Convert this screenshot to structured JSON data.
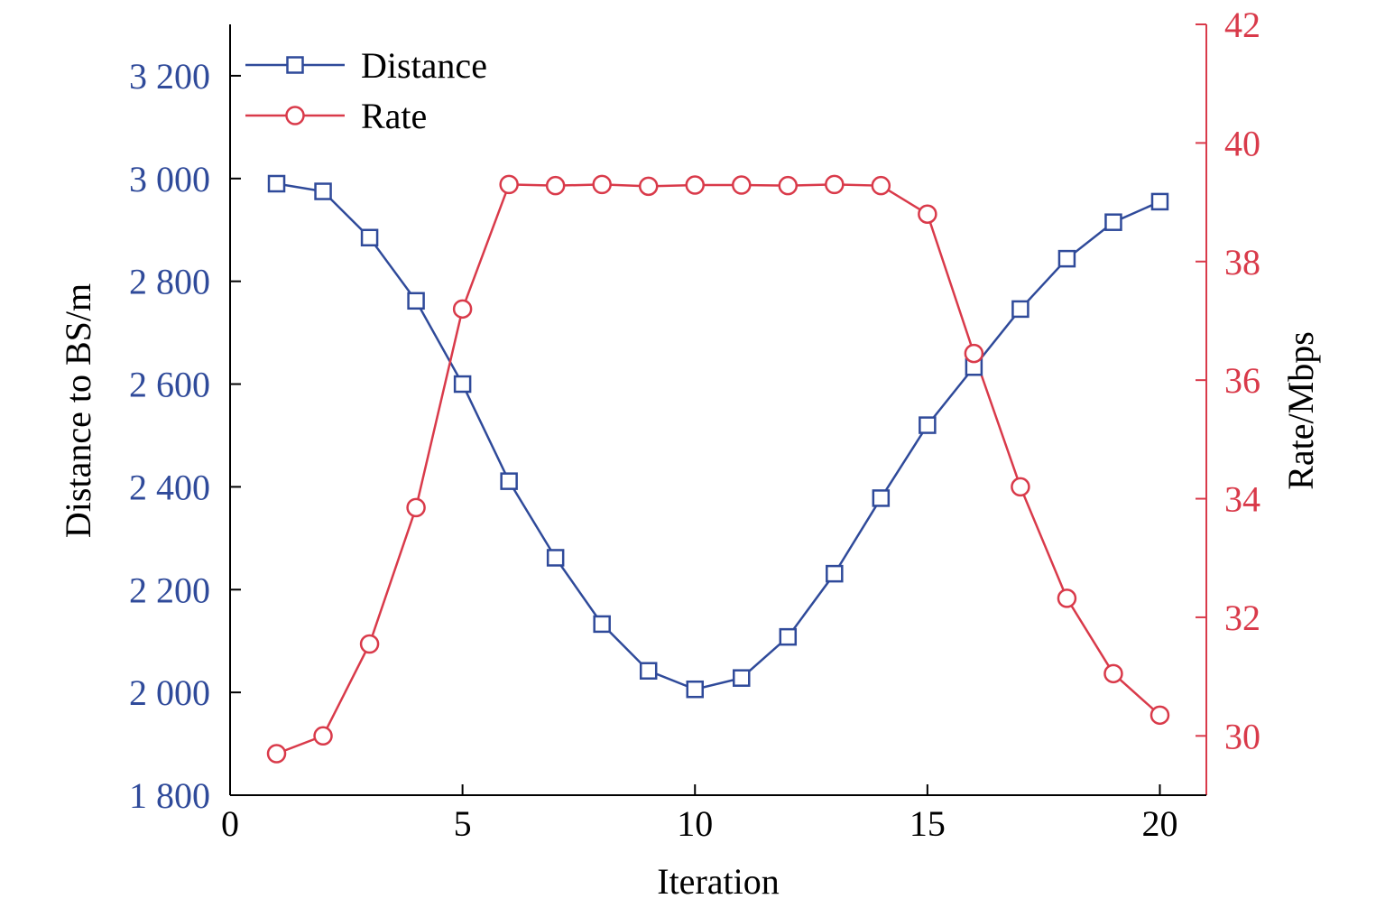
{
  "chart_data": {
    "type": "line",
    "title": "",
    "xlabel": "Iteration",
    "ylabel_left": "Distance to BS/m",
    "ylabel_right": "Rate/Mbps",
    "xlim": [
      0,
      21
    ],
    "ylim_left": [
      1800,
      3300
    ],
    "ylim_right": [
      29,
      42
    ],
    "x_ticks": [
      0,
      5,
      10,
      15,
      20
    ],
    "y_left_ticks": [
      1800,
      2000,
      2200,
      2400,
      2600,
      2800,
      3000,
      3200
    ],
    "y_left_tick_labels": [
      "1 800",
      "2 000",
      "2 200",
      "2 400",
      "2 600",
      "2 800",
      "3 000",
      "3 200"
    ],
    "y_right_ticks": [
      30,
      32,
      34,
      36,
      38,
      40,
      42
    ],
    "grid": false,
    "legend_position": "top-left",
    "colors": {
      "left_axis": "#2f4a9a",
      "right_axis": "#d93a4a",
      "distance": "#2f4a9a",
      "rate": "#d93a4a",
      "axis": "#000000"
    },
    "x": [
      1,
      2,
      3,
      4,
      5,
      6,
      7,
      8,
      9,
      10,
      11,
      12,
      13,
      14,
      15,
      16,
      17,
      18,
      19,
      20
    ],
    "series": [
      {
        "name": "Distance",
        "axis": "left",
        "marker": "square",
        "values": [
          2990,
          2975,
          2885,
          2762,
          2600,
          2411,
          2262,
          2133,
          2042,
          2006,
          2028,
          2108,
          2231,
          2378,
          2520,
          2633,
          2746,
          2844,
          2915,
          2955
        ]
      },
      {
        "name": "Rate",
        "axis": "right",
        "marker": "circle",
        "values": [
          29.7,
          30.0,
          31.55,
          33.85,
          37.2,
          39.3,
          39.28,
          39.3,
          39.27,
          39.29,
          39.29,
          39.28,
          39.3,
          39.28,
          38.8,
          36.45,
          34.2,
          32.32,
          31.05,
          30.35
        ]
      }
    ]
  }
}
